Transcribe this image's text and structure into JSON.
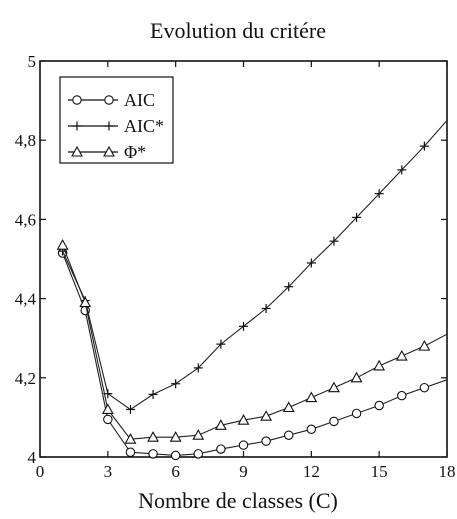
{
  "chart_data": {
    "type": "line",
    "title": "Evolution du critére",
    "xlabel": "Nombre de classes (C)",
    "ylabel": "",
    "xlim": [
      0,
      18
    ],
    "ylim": [
      4,
      5
    ],
    "xticks": [
      0,
      3,
      6,
      9,
      12,
      15,
      18
    ],
    "yticks": [
      4,
      4.2,
      4.4,
      4.6,
      4.8,
      5
    ],
    "ytick_labels": [
      "4",
      "4,2",
      "4,4",
      "4,6",
      "4,8",
      "5"
    ],
    "grid": false,
    "legend_position": "top-left",
    "x": [
      1,
      2,
      3,
      4,
      5,
      6,
      7,
      8,
      9,
      10,
      11,
      12,
      13,
      14,
      15,
      16,
      17,
      18
    ],
    "series": [
      {
        "name": "AIC",
        "marker": "circle",
        "marker_x": [
          1,
          2,
          3,
          4,
          5,
          6,
          7,
          8,
          9,
          10,
          11,
          12,
          13,
          14,
          15,
          16,
          17
        ],
        "values": [
          4.515,
          4.37,
          4.095,
          4.012,
          4.008,
          4.004,
          4.008,
          4.02,
          4.03,
          4.04,
          4.055,
          4.07,
          4.09,
          4.11,
          4.13,
          4.155,
          4.175,
          4.195
        ]
      },
      {
        "name": "AIC*",
        "marker": "plus",
        "marker_x": [
          1,
          2,
          3,
          4,
          5,
          6,
          7,
          8,
          9,
          10,
          11,
          12,
          13,
          14,
          15,
          16,
          17
        ],
        "values": [
          4.52,
          4.395,
          4.16,
          4.12,
          4.158,
          4.185,
          4.225,
          4.285,
          4.33,
          4.375,
          4.43,
          4.49,
          4.545,
          4.605,
          4.665,
          4.725,
          4.785,
          4.85
        ]
      },
      {
        "name": "Φ*",
        "marker": "triangle",
        "marker_x": [
          1,
          2,
          3,
          4,
          5,
          6,
          7,
          8,
          9,
          10,
          11,
          12,
          13,
          14,
          15,
          16,
          17
        ],
        "values": [
          4.535,
          4.39,
          4.12,
          4.045,
          4.05,
          4.05,
          4.055,
          4.08,
          4.093,
          4.103,
          4.125,
          4.15,
          4.175,
          4.2,
          4.23,
          4.255,
          4.28,
          4.31
        ]
      }
    ]
  }
}
